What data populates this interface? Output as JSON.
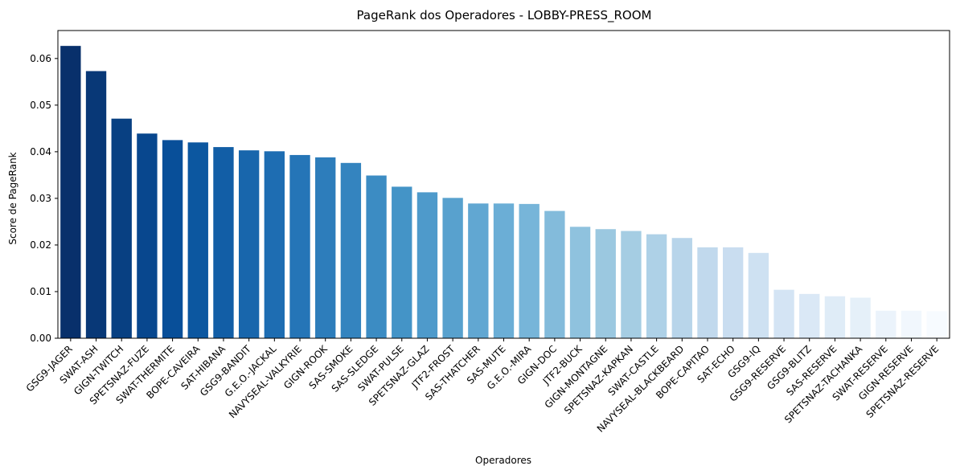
{
  "chart_data": {
    "type": "bar",
    "title": "PageRank dos Operadores - LOBBY-PRESS_ROOM",
    "xlabel": "Operadores",
    "ylabel": "Score de PageRank",
    "ylim": [
      0,
      0.066
    ],
    "yticks": [
      "0.00",
      "0.01",
      "0.02",
      "0.03",
      "0.04",
      "0.05",
      "0.06"
    ],
    "grid": false,
    "categories": [
      "GSG9-JAGER",
      "SWAT-ASH",
      "GIGN-TWITCH",
      "SPETSNAZ-FUZE",
      "SWAT-THERMITE",
      "BOPE-CAVEIRA",
      "SAT-HIBANA",
      "GSG9-BANDIT",
      "G.E.O.-JACKAL",
      "NAVYSEAL-VALKYRIE",
      "GIGN-ROOK",
      "SAS-SMOKE",
      "SAS-SLEDGE",
      "SWAT-PULSE",
      "SPETSNAZ-GLAZ",
      "JTF2-FROST",
      "SAS-THATCHER",
      "SAS-MUTE",
      "G.E.O.-MIRA",
      "GIGN-DOC",
      "JTF2-BUCK",
      "GIGN-MONTAGNE",
      "SPETSNAZ-KAPKAN",
      "SWAT-CASTLE",
      "NAVYSEAL-BLACKBEARD",
      "BOPE-CAPITAO",
      "SAT-ECHO",
      "GSG9-IQ",
      "GSG9-RESERVE",
      "GSG9-BLITZ",
      "SAS-RESERVE",
      "SPETSNAZ-TACHANKA",
      "SWAT-RESERVE",
      "GIGN-RESERVE",
      "SPETSNAZ-RESERVE"
    ],
    "values": [
      0.0627,
      0.0573,
      0.0471,
      0.0439,
      0.0425,
      0.042,
      0.041,
      0.0403,
      0.0401,
      0.0393,
      0.0388,
      0.0376,
      0.0349,
      0.0325,
      0.0313,
      0.0301,
      0.0289,
      0.0289,
      0.0288,
      0.0273,
      0.0239,
      0.0234,
      0.023,
      0.0223,
      0.0215,
      0.0195,
      0.0195,
      0.0183,
      0.0104,
      0.0095,
      0.009,
      0.0087,
      0.0059,
      0.0059,
      0.0058
    ],
    "colormap": "Blues_r",
    "color_dark": "#08306b",
    "color_light": "#f7fbff"
  }
}
